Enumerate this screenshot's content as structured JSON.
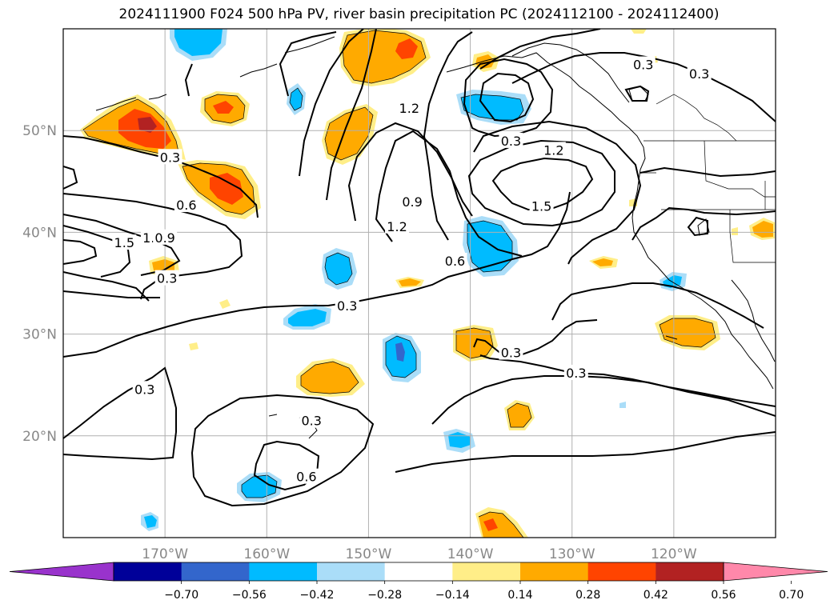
{
  "title": "2024111900 F024 500 hPa PV, river basin precipitation PC (2024112100 - 2024112400)",
  "map": {
    "lon_range": [
      -180,
      -110
    ],
    "lat_range": [
      10,
      60
    ],
    "lat_ticks": [
      {
        "value": 20,
        "label": "20°N"
      },
      {
        "value": 30,
        "label": "30°N"
      },
      {
        "value": 40,
        "label": "40°N"
      },
      {
        "value": 50,
        "label": "50°N"
      }
    ],
    "lon_ticks": [
      {
        "value": -170,
        "label": "170°W"
      },
      {
        "value": -160,
        "label": "160°W"
      },
      {
        "value": -150,
        "label": "150°W"
      },
      {
        "value": -140,
        "label": "140°W"
      },
      {
        "value": -130,
        "label": "130°W"
      },
      {
        "value": -120,
        "label": "120°W"
      }
    ],
    "grid": true
  },
  "contour_labels": [
    {
      "text": "1.2",
      "lon": -146.0,
      "lat": 52.2
    },
    {
      "text": "0.3",
      "lon": -123.0,
      "lat": 56.5
    },
    {
      "text": "0.3",
      "lon": -117.5,
      "lat": 55.6
    },
    {
      "text": "0.3",
      "lon": -136.0,
      "lat": 49.0
    },
    {
      "text": "1.2",
      "lon": -131.8,
      "lat": 48.1
    },
    {
      "text": "1.5",
      "lon": -133.0,
      "lat": 42.6
    },
    {
      "text": "0.9",
      "lon": -145.7,
      "lat": 43.0
    },
    {
      "text": "1.2",
      "lon": -147.2,
      "lat": 40.6
    },
    {
      "text": "0.6",
      "lon": -141.5,
      "lat": 37.2
    },
    {
      "text": "0.3",
      "lon": -169.5,
      "lat": 47.4
    },
    {
      "text": "0.6",
      "lon": -167.9,
      "lat": 42.7
    },
    {
      "text": "1.5",
      "lon": -174.0,
      "lat": 39.0
    },
    {
      "text": "1.2",
      "lon": -171.2,
      "lat": 39.5
    },
    {
      "text": "0.9",
      "lon": -170.0,
      "lat": 39.5
    },
    {
      "text": "0.3",
      "lon": -169.8,
      "lat": 35.5
    },
    {
      "text": "0.3",
      "lon": -152.1,
      "lat": 32.8
    },
    {
      "text": "0.3",
      "lon": -136.0,
      "lat": 28.2
    },
    {
      "text": "0.3",
      "lon": -129.6,
      "lat": 26.2
    },
    {
      "text": "0.3",
      "lon": -172.0,
      "lat": 24.6
    },
    {
      "text": "0.3",
      "lon": -155.6,
      "lat": 21.5
    },
    {
      "text": "0.6",
      "lon": -156.1,
      "lat": 16.0
    }
  ],
  "colorbar": {
    "levels": [
      -0.7,
      -0.56,
      -0.42,
      -0.28,
      -0.14,
      0.14,
      0.28,
      0.42,
      0.56,
      0.7
    ],
    "tick_labels": [
      "−0.70",
      "−0.56",
      "−0.42",
      "−0.28",
      "−0.14",
      "0.14",
      "0.28",
      "0.42",
      "0.56",
      "0.70"
    ],
    "colors": [
      "#9933cc",
      "#000099",
      "#3366cc",
      "#00bbff",
      "#aaddf8",
      "#ffffff",
      "#ffee88",
      "#ffaa00",
      "#ff4400",
      "#b22222",
      "#ff88aa"
    ],
    "extend": "both"
  }
}
